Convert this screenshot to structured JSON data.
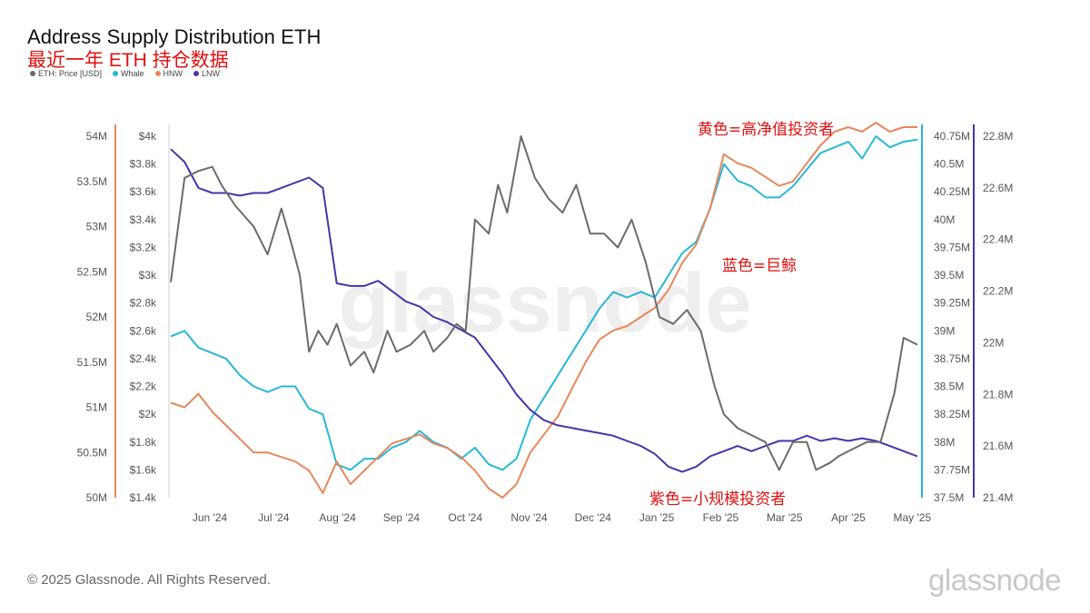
{
  "title": "Address Supply Distribution ETH",
  "subtitle": "最近一年 ETH 持仓数据",
  "footer": "© 2025 Glassnode. All Rights Reserved.",
  "brand": "glassnode",
  "watermark": "glassnode",
  "chart_data": {
    "type": "line",
    "title": "Address Supply Distribution ETH",
    "legend_position": "top-left",
    "grid": false,
    "x_labels": [
      "Jun '24",
      "Jul '24",
      "Aug '24",
      "Sep '24",
      "Oct '24",
      "Nov '24",
      "Dec '24",
      "Jan '25",
      "Feb '25",
      "Mar '25",
      "Apr '25",
      "May '25"
    ],
    "axes": {
      "price": {
        "ticks": [
          "$1.4k",
          "$1.6k",
          "$1.8k",
          "$2k",
          "$2.2k",
          "$2.4k",
          "$2.6k",
          "$2.8k",
          "$3k",
          "$3.2k",
          "$3.4k",
          "$3.6k",
          "$3.8k",
          "$4k"
        ],
        "range": [
          1400,
          4000
        ],
        "color": "#444444"
      },
      "hnw": {
        "ticks": [
          "50M",
          "50.5M",
          "51M",
          "51.5M",
          "52M",
          "52.5M",
          "53M",
          "53.5M",
          "54M"
        ],
        "range": [
          50000000,
          54000000
        ],
        "color": "#e8875a"
      },
      "whale": {
        "ticks": [
          "37.5M",
          "37.75M",
          "38M",
          "38.25M",
          "38.5M",
          "38.75M",
          "39M",
          "39.25M",
          "39.5M",
          "39.75M",
          "40M",
          "40.25M",
          "40.5M",
          "40.75M"
        ],
        "range": [
          37500000,
          40750000
        ],
        "color": "#27b7d8"
      },
      "lnw": {
        "ticks": [
          "21.4M",
          "21.6M",
          "21.8M",
          "22M",
          "22.2M",
          "22.4M",
          "22.6M",
          "22.8M"
        ],
        "range": [
          21400000,
          22800000
        ],
        "color": "#4a33a8"
      }
    },
    "series": [
      {
        "name": "ETH: Price [USD]",
        "color": "#6b6b6b",
        "axis": "price",
        "points": [
          [
            0,
            2950
          ],
          [
            0.3,
            3700
          ],
          [
            0.6,
            3750
          ],
          [
            0.9,
            3780
          ],
          [
            1.1,
            3650
          ],
          [
            1.4,
            3500
          ],
          [
            1.8,
            3350
          ],
          [
            2.1,
            3150
          ],
          [
            2.4,
            3480
          ],
          [
            2.6,
            3250
          ],
          [
            2.8,
            3000
          ],
          [
            3.0,
            2450
          ],
          [
            3.2,
            2600
          ],
          [
            3.4,
            2500
          ],
          [
            3.6,
            2650
          ],
          [
            3.9,
            2350
          ],
          [
            4.2,
            2450
          ],
          [
            4.4,
            2300
          ],
          [
            4.7,
            2600
          ],
          [
            4.9,
            2450
          ],
          [
            5.2,
            2500
          ],
          [
            5.5,
            2600
          ],
          [
            5.7,
            2450
          ],
          [
            6.0,
            2550
          ],
          [
            6.2,
            2650
          ],
          [
            6.4,
            2600
          ],
          [
            6.6,
            3400
          ],
          [
            6.9,
            3300
          ],
          [
            7.1,
            3650
          ],
          [
            7.3,
            3450
          ],
          [
            7.6,
            4000
          ],
          [
            7.9,
            3700
          ],
          [
            8.2,
            3550
          ],
          [
            8.5,
            3450
          ],
          [
            8.8,
            3650
          ],
          [
            9.1,
            3300
          ],
          [
            9.4,
            3300
          ],
          [
            9.7,
            3200
          ],
          [
            10.0,
            3400
          ],
          [
            10.3,
            3100
          ],
          [
            10.6,
            2700
          ],
          [
            10.9,
            2650
          ],
          [
            11.2,
            2750
          ],
          [
            11.5,
            2600
          ],
          [
            11.8,
            2200
          ],
          [
            12.0,
            2000
          ],
          [
            12.3,
            1900
          ],
          [
            12.6,
            1850
          ],
          [
            12.9,
            1800
          ],
          [
            13.2,
            1600
          ],
          [
            13.5,
            1800
          ],
          [
            13.8,
            1800
          ],
          [
            14.0,
            1600
          ],
          [
            14.3,
            1650
          ],
          [
            14.5,
            1700
          ],
          [
            14.8,
            1750
          ],
          [
            15.1,
            1800
          ],
          [
            15.4,
            1800
          ],
          [
            15.7,
            2150
          ],
          [
            15.9,
            2550
          ],
          [
            16.2,
            2500
          ]
        ]
      },
      {
        "name": "Whale",
        "color": "#27b7d8",
        "axis": "whale",
        "points": [
          [
            0,
            38.95
          ],
          [
            0.3,
            39.0
          ],
          [
            0.6,
            38.85
          ],
          [
            0.9,
            38.8
          ],
          [
            1.2,
            38.75
          ],
          [
            1.5,
            38.6
          ],
          [
            1.8,
            38.5
          ],
          [
            2.1,
            38.45
          ],
          [
            2.4,
            38.5
          ],
          [
            2.7,
            38.5
          ],
          [
            3.0,
            38.3
          ],
          [
            3.3,
            38.25
          ],
          [
            3.6,
            37.8
          ],
          [
            3.9,
            37.75
          ],
          [
            4.2,
            37.85
          ],
          [
            4.5,
            37.85
          ],
          [
            4.8,
            37.95
          ],
          [
            5.1,
            38.0
          ],
          [
            5.4,
            38.1
          ],
          [
            5.7,
            38.0
          ],
          [
            6.0,
            37.95
          ],
          [
            6.3,
            37.85
          ],
          [
            6.6,
            37.95
          ],
          [
            6.9,
            37.8
          ],
          [
            7.2,
            37.75
          ],
          [
            7.5,
            37.85
          ],
          [
            7.8,
            38.2
          ],
          [
            8.1,
            38.4
          ],
          [
            8.4,
            38.6
          ],
          [
            8.7,
            38.8
          ],
          [
            9.0,
            39.0
          ],
          [
            9.3,
            39.2
          ],
          [
            9.6,
            39.35
          ],
          [
            9.9,
            39.3
          ],
          [
            10.2,
            39.35
          ],
          [
            10.5,
            39.3
          ],
          [
            10.8,
            39.5
          ],
          [
            11.1,
            39.7
          ],
          [
            11.4,
            39.8
          ],
          [
            11.7,
            40.1
          ],
          [
            12.0,
            40.5
          ],
          [
            12.3,
            40.35
          ],
          [
            12.6,
            40.3
          ],
          [
            12.9,
            40.2
          ],
          [
            13.2,
            40.2
          ],
          [
            13.5,
            40.3
          ],
          [
            13.8,
            40.45
          ],
          [
            14.1,
            40.6
          ],
          [
            14.4,
            40.65
          ],
          [
            14.7,
            40.7
          ],
          [
            15.0,
            40.55
          ],
          [
            15.3,
            40.75
          ],
          [
            15.6,
            40.65
          ],
          [
            15.9,
            40.7
          ],
          [
            16.2,
            40.72
          ]
        ]
      },
      {
        "name": "HNW",
        "color": "#e8875a",
        "axis": "hnw",
        "points": [
          [
            0,
            51.05
          ],
          [
            0.3,
            51.0
          ],
          [
            0.6,
            51.15
          ],
          [
            0.9,
            50.95
          ],
          [
            1.2,
            50.8
          ],
          [
            1.5,
            50.65
          ],
          [
            1.8,
            50.5
          ],
          [
            2.1,
            50.5
          ],
          [
            2.4,
            50.45
          ],
          [
            2.7,
            50.4
          ],
          [
            3.0,
            50.3
          ],
          [
            3.3,
            50.05
          ],
          [
            3.6,
            50.4
          ],
          [
            3.9,
            50.15
          ],
          [
            4.2,
            50.3
          ],
          [
            4.5,
            50.45
          ],
          [
            4.8,
            50.6
          ],
          [
            5.1,
            50.65
          ],
          [
            5.4,
            50.7
          ],
          [
            5.7,
            50.6
          ],
          [
            6.0,
            50.55
          ],
          [
            6.3,
            50.45
          ],
          [
            6.6,
            50.3
          ],
          [
            6.9,
            50.1
          ],
          [
            7.2,
            50.0
          ],
          [
            7.5,
            50.15
          ],
          [
            7.8,
            50.5
          ],
          [
            8.1,
            50.7
          ],
          [
            8.4,
            50.9
          ],
          [
            8.7,
            51.2
          ],
          [
            9.0,
            51.5
          ],
          [
            9.3,
            51.75
          ],
          [
            9.6,
            51.85
          ],
          [
            9.9,
            51.9
          ],
          [
            10.2,
            52.0
          ],
          [
            10.5,
            52.1
          ],
          [
            10.8,
            52.3
          ],
          [
            11.1,
            52.6
          ],
          [
            11.4,
            52.8
          ],
          [
            11.7,
            53.2
          ],
          [
            12.0,
            53.8
          ],
          [
            12.3,
            53.7
          ],
          [
            12.6,
            53.65
          ],
          [
            12.9,
            53.55
          ],
          [
            13.2,
            53.45
          ],
          [
            13.5,
            53.5
          ],
          [
            13.8,
            53.7
          ],
          [
            14.1,
            53.9
          ],
          [
            14.4,
            54.05
          ],
          [
            14.7,
            54.1
          ],
          [
            15.0,
            54.05
          ],
          [
            15.3,
            54.15
          ],
          [
            15.6,
            54.05
          ],
          [
            15.9,
            54.1
          ],
          [
            16.2,
            54.1
          ]
        ]
      },
      {
        "name": "LNW",
        "color": "#4a33a8",
        "axis": "lnw",
        "points": [
          [
            0,
            22.75
          ],
          [
            0.3,
            22.7
          ],
          [
            0.6,
            22.6
          ],
          [
            0.9,
            22.58
          ],
          [
            1.2,
            22.58
          ],
          [
            1.5,
            22.57
          ],
          [
            1.8,
            22.58
          ],
          [
            2.1,
            22.58
          ],
          [
            2.4,
            22.6
          ],
          [
            2.7,
            22.62
          ],
          [
            3.0,
            22.64
          ],
          [
            3.3,
            22.6
          ],
          [
            3.6,
            22.23
          ],
          [
            3.9,
            22.22
          ],
          [
            4.2,
            22.22
          ],
          [
            4.5,
            22.24
          ],
          [
            4.8,
            22.2
          ],
          [
            5.1,
            22.16
          ],
          [
            5.4,
            22.14
          ],
          [
            5.7,
            22.1
          ],
          [
            6.0,
            22.08
          ],
          [
            6.3,
            22.05
          ],
          [
            6.6,
            22.02
          ],
          [
            6.9,
            21.95
          ],
          [
            7.2,
            21.88
          ],
          [
            7.5,
            21.8
          ],
          [
            7.8,
            21.74
          ],
          [
            8.1,
            21.7
          ],
          [
            8.4,
            21.68
          ],
          [
            8.7,
            21.67
          ],
          [
            9.0,
            21.66
          ],
          [
            9.3,
            21.65
          ],
          [
            9.6,
            21.64
          ],
          [
            9.9,
            21.62
          ],
          [
            10.2,
            21.6
          ],
          [
            10.5,
            21.57
          ],
          [
            10.8,
            21.52
          ],
          [
            11.1,
            21.5
          ],
          [
            11.4,
            21.52
          ],
          [
            11.7,
            21.56
          ],
          [
            12.0,
            21.58
          ],
          [
            12.3,
            21.6
          ],
          [
            12.6,
            21.58
          ],
          [
            12.9,
            21.6
          ],
          [
            13.2,
            21.62
          ],
          [
            13.5,
            21.62
          ],
          [
            13.8,
            21.64
          ],
          [
            14.1,
            21.62
          ],
          [
            14.4,
            21.63
          ],
          [
            14.7,
            21.62
          ],
          [
            15.0,
            21.63
          ],
          [
            15.3,
            21.62
          ],
          [
            15.6,
            21.6
          ],
          [
            15.9,
            21.58
          ],
          [
            16.2,
            21.56
          ]
        ]
      }
    ],
    "annotations": [
      {
        "text": "黄色=高净值投资者",
        "target": "HNW"
      },
      {
        "text": "蓝色=巨鲸",
        "target": "Whale"
      },
      {
        "text": "紫色=小规模投资者",
        "target": "LNW"
      }
    ]
  }
}
